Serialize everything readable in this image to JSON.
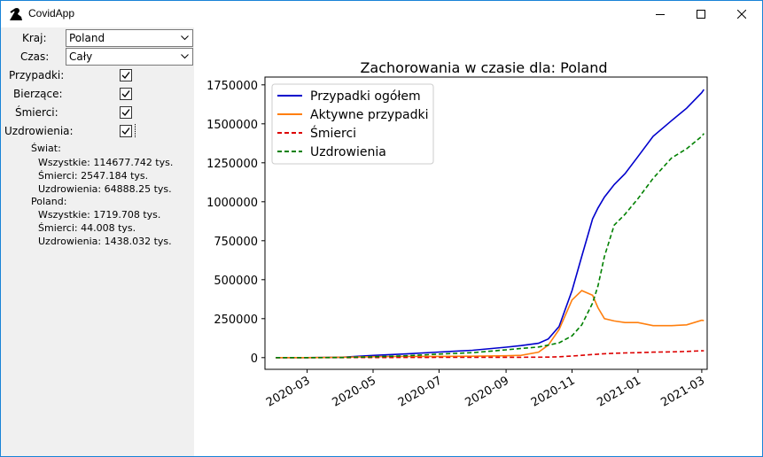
{
  "window": {
    "title": "CovidApp",
    "controls": {
      "minimize": "minimize",
      "maximize": "maximize",
      "close": "close"
    }
  },
  "sidebar": {
    "country_label": "Kraj:",
    "country_value": "Poland",
    "time_label": "Czas:",
    "time_value": "Cały",
    "checkboxes": [
      {
        "label": "Przypadki:",
        "checked": true
      },
      {
        "label": "Bierzące:",
        "checked": true
      },
      {
        "label": "Śmierci:",
        "checked": true
      },
      {
        "label": "Uzdrowienia:",
        "checked": true
      }
    ],
    "world": {
      "heading": "Świat:",
      "all": "Wszystkie:  114677.742 tys.",
      "deaths": "Śmierci:  2547.184 tys.",
      "recovered": "Uzdrowienia:  64888.25 tys."
    },
    "country": {
      "heading": "Poland:",
      "all": "Wszystkie:  1719.708 tys.",
      "deaths": "Śmierci:  44.008 tys.",
      "recovered": "Uzdrowienia:  1438.032 tys."
    }
  },
  "chart_data": {
    "type": "line",
    "title": "Zachorowania w czasie dla: Poland",
    "xlabel": "",
    "ylabel": "",
    "xlim": [
      "2020-01-22",
      "2021-03-06"
    ],
    "ylim": [
      -75000,
      1800000
    ],
    "x_ticks": [
      "2020-03",
      "2020-05",
      "2020-07",
      "2020-09",
      "2020-11",
      "2021-01",
      "2021-03"
    ],
    "y_ticks": [
      0,
      250000,
      500000,
      750000,
      1000000,
      1250000,
      1500000,
      1750000
    ],
    "y_tick_labels": [
      "0",
      "250000",
      "500000",
      "750000",
      "1000000",
      "1250000",
      "1500000",
      "1750000"
    ],
    "grid": false,
    "legend_position": "top-left",
    "x": [
      "2020-02-01",
      "2020-03-01",
      "2020-04-01",
      "2020-05-01",
      "2020-06-01",
      "2020-07-01",
      "2020-08-01",
      "2020-09-01",
      "2020-09-15",
      "2020-10-01",
      "2020-10-10",
      "2020-10-20",
      "2020-11-01",
      "2020-11-10",
      "2020-11-20",
      "2020-11-25",
      "2020-12-01",
      "2020-12-10",
      "2020-12-20",
      "2021-01-01",
      "2021-01-15",
      "2021-02-01",
      "2021-02-15",
      "2021-03-01",
      "2021-03-03"
    ],
    "series": [
      {
        "name": "Przypadki ogółem",
        "color": "#0000cc",
        "dash": "solid",
        "values": [
          0,
          0,
          2500,
          14000,
          24000,
          36000,
          47000,
          67000,
          77000,
          92000,
          120000,
          200000,
          430000,
          650000,
          890000,
          960000,
          1030000,
          1110000,
          1180000,
          1290000,
          1420000,
          1520000,
          1600000,
          1700000,
          1720000
        ]
      },
      {
        "name": "Aktywne przypadki",
        "color": "#ff7f0e",
        "dash": "solid",
        "values": [
          0,
          0,
          2000,
          6000,
          8000,
          8000,
          9000,
          12000,
          15000,
          35000,
          80000,
          180000,
          370000,
          430000,
          400000,
          320000,
          250000,
          235000,
          225000,
          225000,
          205000,
          205000,
          210000,
          240000,
          238000
        ]
      },
      {
        "name": "Śmierci",
        "color": "#dd0000",
        "dash": "dashed",
        "values": [
          0,
          0,
          100,
          600,
          1000,
          1500,
          1800,
          2200,
          2300,
          2600,
          3500,
          5500,
          10000,
          15000,
          20000,
          22000,
          25000,
          28000,
          30000,
          32000,
          35000,
          37000,
          40000,
          44000,
          44008
        ]
      },
      {
        "name": "Uzdrowienia",
        "color": "#008000",
        "dash": "dashed",
        "values": [
          0,
          0,
          500,
          5000,
          12000,
          23000,
          32000,
          50000,
          59000,
          68000,
          80000,
          95000,
          140000,
          210000,
          350000,
          460000,
          650000,
          850000,
          920000,
          1020000,
          1150000,
          1280000,
          1340000,
          1420000,
          1438000
        ]
      }
    ]
  }
}
